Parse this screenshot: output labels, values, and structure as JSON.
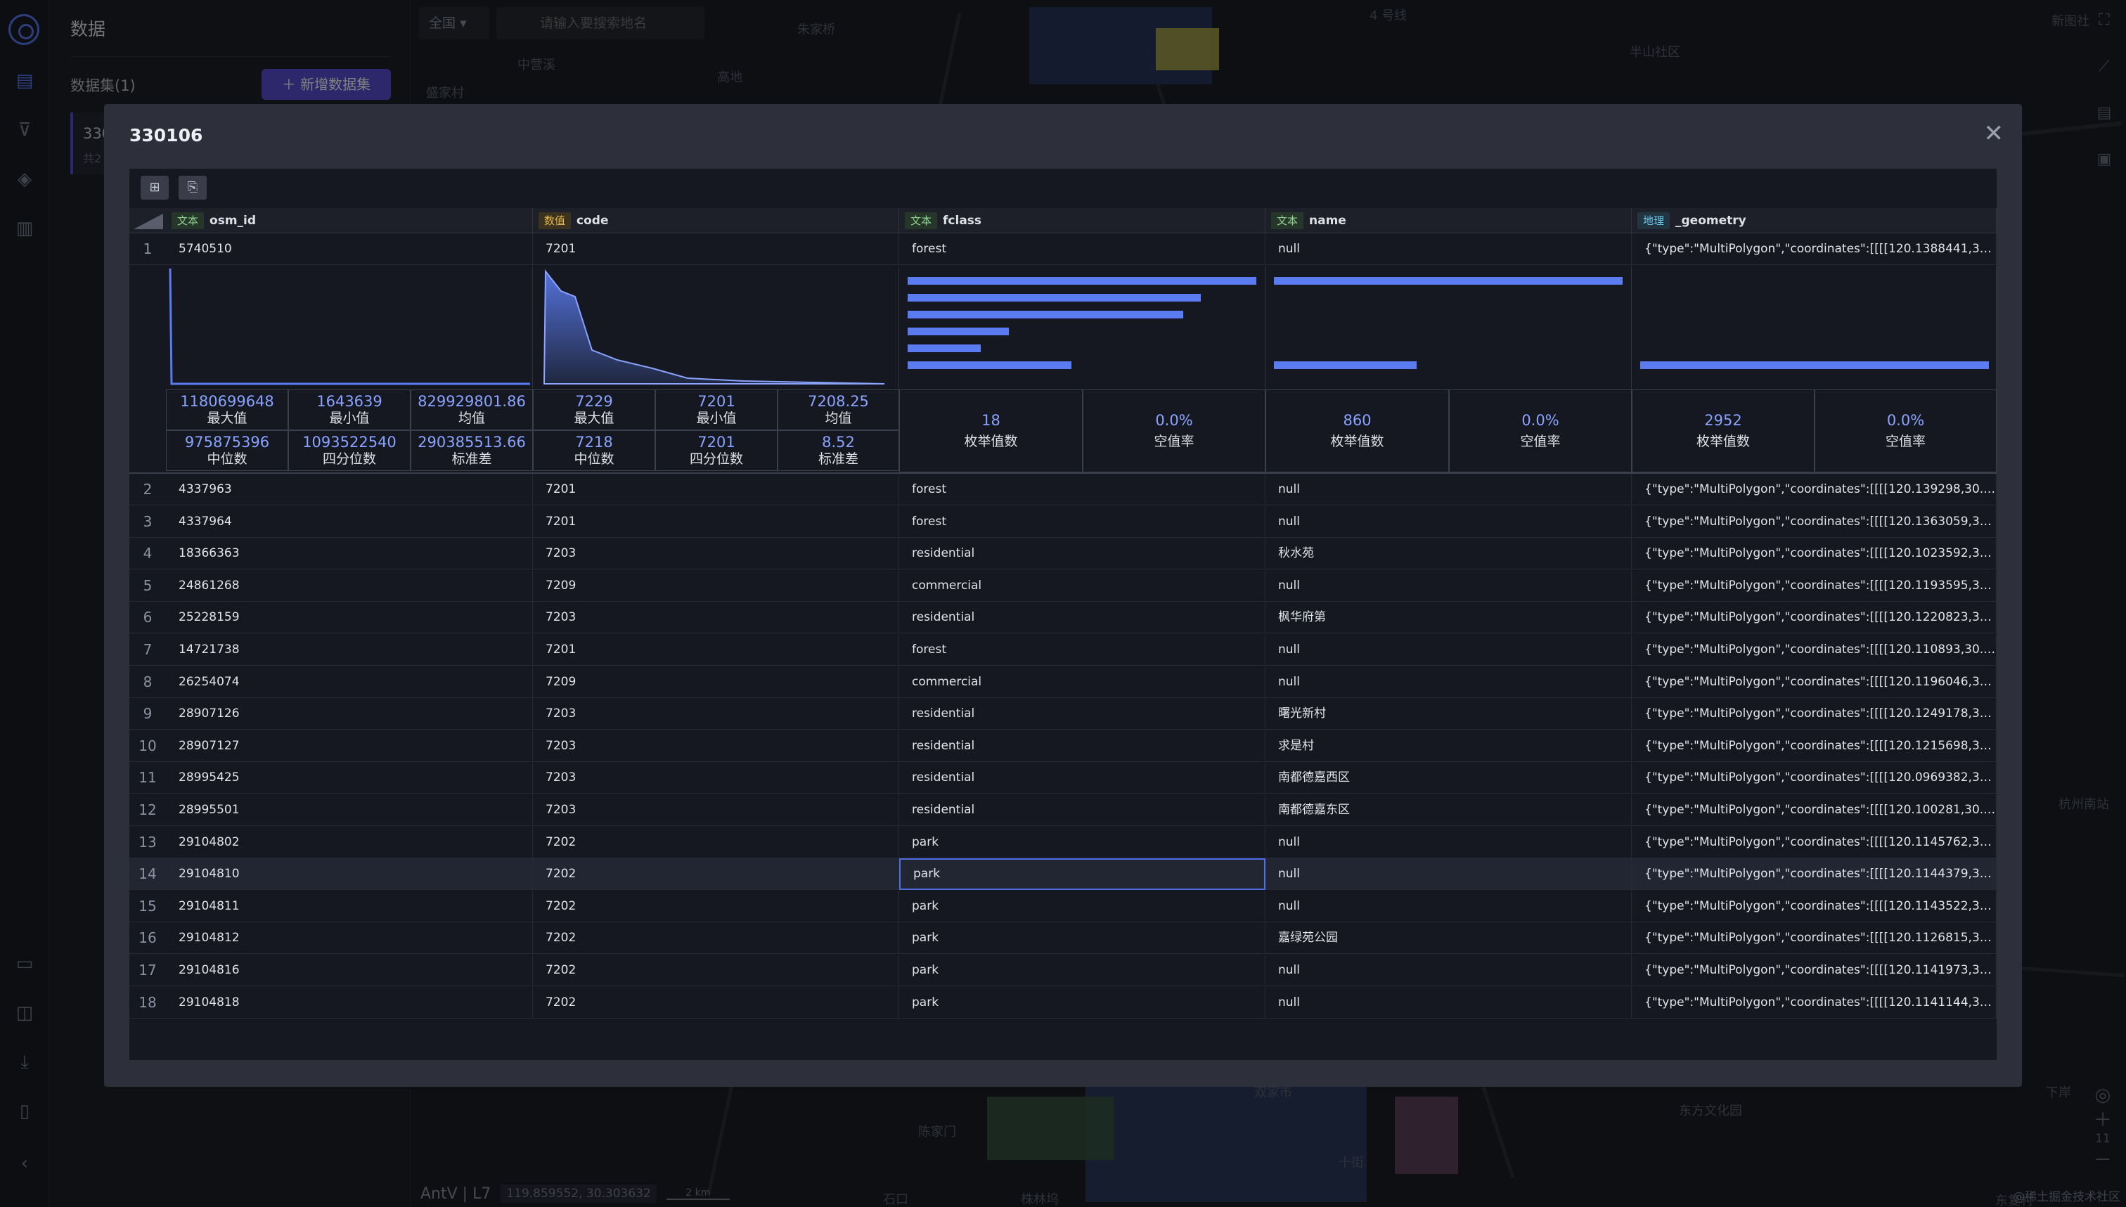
{
  "nav": {
    "items": [
      "data-icon",
      "filter-icon",
      "layers-icon",
      "table-icon",
      "monitor-icon",
      "book-icon",
      "download-icon",
      "guide-icon",
      "collapse-icon"
    ]
  },
  "panel": {
    "title": "数据",
    "dataset_label": "数据集(1)",
    "add_button": "新增数据集",
    "item_name": "330",
    "item_sub": "共2"
  },
  "map": {
    "region_select": "全国",
    "search_placeholder": "请输入要搜索地名",
    "labels": [
      "中营溪",
      "盛家村",
      "高地",
      "朱家桥",
      "4 号线",
      "半山社区",
      "新图社",
      "杭州南站",
      "东方文化园",
      "陈家门",
      "石口",
      "株林坞",
      "下岸",
      "东复村",
      "双家市",
      "十街"
    ],
    "brand": "AntV | L7",
    "coords": "119.859552, 30.303632",
    "scale": "2 km",
    "copyright": "@稀土掘金技术社区",
    "zoom_level": "11"
  },
  "modal": {
    "title": "330106",
    "columns": [
      {
        "type_label": "文本",
        "type": "text",
        "name": "osm_id"
      },
      {
        "type_label": "数值",
        "type": "num",
        "name": "code"
      },
      {
        "type_label": "文本",
        "type": "text",
        "name": "fclass"
      },
      {
        "type_label": "文本",
        "type": "text",
        "name": "name"
      },
      {
        "type_label": "地理",
        "type": "geo",
        "name": "_geometry"
      }
    ],
    "first_row": {
      "idx": "1",
      "osm_id": "5740510",
      "code": "7201",
      "fclass": "forest",
      "name": "null",
      "geometry": "{\"type\":\"MultiPolygon\",\"coordinates\":[[[[120.1388441,30.24..."
    },
    "stats": {
      "osm_id": [
        {
          "v": "1180699648",
          "k": "最大值"
        },
        {
          "v": "1643639",
          "k": "最小值"
        },
        {
          "v": "829929801.86",
          "k": "均值"
        },
        {
          "v": "975875396",
          "k": "中位数"
        },
        {
          "v": "1093522540",
          "k": "四分位数"
        },
        {
          "v": "290385513.66",
          "k": "标准差"
        }
      ],
      "code": [
        {
          "v": "7229",
          "k": "最大值"
        },
        {
          "v": "7201",
          "k": "最小值"
        },
        {
          "v": "7208.25",
          "k": "均值"
        },
        {
          "v": "7218",
          "k": "中位数"
        },
        {
          "v": "7201",
          "k": "四分位数"
        },
        {
          "v": "8.52",
          "k": "标准差"
        }
      ],
      "fclass": [
        {
          "v": "18",
          "k": "枚举值数"
        },
        {
          "v": "0.0%",
          "k": "空值率"
        }
      ],
      "name": [
        {
          "v": "860",
          "k": "枚举值数"
        },
        {
          "v": "0.0%",
          "k": "空值率"
        }
      ],
      "geometry": [
        {
          "v": "2952",
          "k": "枚举值数"
        },
        {
          "v": "0.0%",
          "k": "空值率"
        }
      ]
    },
    "fclass_bar_fractions": [
      1.0,
      0.84,
      0.79,
      0.29,
      0.21,
      0.47
    ],
    "name_bar_fractions": [
      1.0,
      0.41
    ],
    "geometry_bar_fractions": [
      1.0
    ],
    "rows": [
      {
        "idx": "2",
        "osm_id": "4337963",
        "code": "7201",
        "fclass": "forest",
        "name": "null",
        "geometry": "{\"type\":\"MultiPolygon\",\"coordinates\":[[[[120.139298,30.248..."
      },
      {
        "idx": "3",
        "osm_id": "4337964",
        "code": "7201",
        "fclass": "forest",
        "name": "null",
        "geometry": "{\"type\":\"MultiPolygon\",\"coordinates\":[[[[120.1363059,30.24..."
      },
      {
        "idx": "4",
        "osm_id": "18366363",
        "code": "7203",
        "fclass": "residential",
        "name": "秋水苑",
        "geometry": "{\"type\":\"MultiPolygon\",\"coordinates\":[[[[120.1023592,30.27..."
      },
      {
        "idx": "5",
        "osm_id": "24861268",
        "code": "7209",
        "fclass": "commercial",
        "name": "null",
        "geometry": "{\"type\":\"MultiPolygon\",\"coordinates\":[[[[120.1193595,30.28..."
      },
      {
        "idx": "6",
        "osm_id": "25228159",
        "code": "7203",
        "fclass": "residential",
        "name": "枫华府第",
        "geometry": "{\"type\":\"MultiPolygon\",\"coordinates\":[[[[120.1220823,30.28..."
      },
      {
        "idx": "7",
        "osm_id": "14721738",
        "code": "7201",
        "fclass": "forest",
        "name": "null",
        "geometry": "{\"type\":\"MultiPolygon\",\"coordinates\":[[[[120.110893,30.245..."
      },
      {
        "idx": "8",
        "osm_id": "26254074",
        "code": "7209",
        "fclass": "commercial",
        "name": "null",
        "geometry": "{\"type\":\"MultiPolygon\",\"coordinates\":[[[[120.1196046,30.27..."
      },
      {
        "idx": "9",
        "osm_id": "28907126",
        "code": "7203",
        "fclass": "residential",
        "name": "曙光新村",
        "geometry": "{\"type\":\"MultiPolygon\",\"coordinates\":[[[[120.1249178,30.26..."
      },
      {
        "idx": "10",
        "osm_id": "28907127",
        "code": "7203",
        "fclass": "residential",
        "name": "求是村",
        "geometry": "{\"type\":\"MultiPolygon\",\"coordinates\":[[[[120.1215698,30.26..."
      },
      {
        "idx": "11",
        "osm_id": "28995425",
        "code": "7203",
        "fclass": "residential",
        "name": "南都德嘉西区",
        "geometry": "{\"type\":\"MultiPolygon\",\"coordinates\":[[[[120.0969382,30.28..."
      },
      {
        "idx": "12",
        "osm_id": "28995501",
        "code": "7203",
        "fclass": "residential",
        "name": "南都德嘉东区",
        "geometry": "{\"type\":\"MultiPolygon\",\"coordinates\":[[[[120.100281,30.283..."
      },
      {
        "idx": "13",
        "osm_id": "29104802",
        "code": "7202",
        "fclass": "park",
        "name": "null",
        "geometry": "{\"type\":\"MultiPolygon\",\"coordinates\":[[[[120.1145762,30.27..."
      },
      {
        "idx": "14",
        "osm_id": "29104810",
        "code": "7202",
        "fclass": "park",
        "name": "null",
        "geometry": "{\"type\":\"MultiPolygon\",\"coordinates\":[[[[120.1144379,30.28..."
      },
      {
        "idx": "15",
        "osm_id": "29104811",
        "code": "7202",
        "fclass": "park",
        "name": "null",
        "geometry": "{\"type\":\"MultiPolygon\",\"coordinates\":[[[[120.1143522,30.28..."
      },
      {
        "idx": "16",
        "osm_id": "29104812",
        "code": "7202",
        "fclass": "park",
        "name": "嘉绿苑公园",
        "geometry": "{\"type\":\"MultiPolygon\",\"coordinates\":[[[[120.1126815,30.28..."
      },
      {
        "idx": "17",
        "osm_id": "29104816",
        "code": "7202",
        "fclass": "park",
        "name": "null",
        "geometry": "{\"type\":\"MultiPolygon\",\"coordinates\":[[[[120.1141973,30.28..."
      },
      {
        "idx": "18",
        "osm_id": "29104818",
        "code": "7202",
        "fclass": "park",
        "name": "null",
        "geometry": "{\"type\":\"MultiPolygon\",\"coordinates\":[[[[120.1141144,30.28..."
      }
    ],
    "selected_row": "14",
    "selected_column": "fclass"
  }
}
